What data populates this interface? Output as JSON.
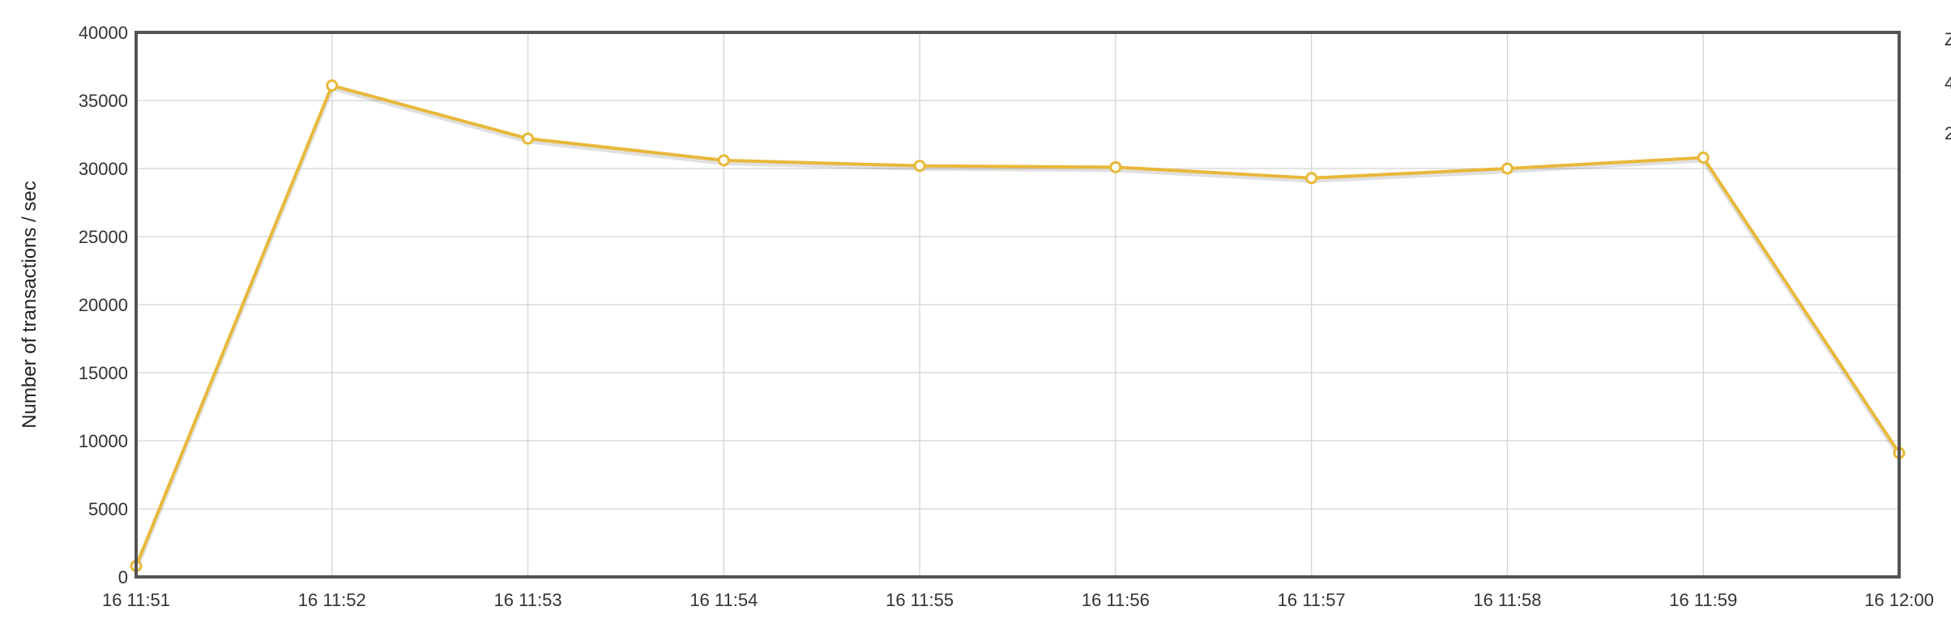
{
  "chart_data": {
    "type": "line",
    "title": "",
    "xlabel": "",
    "ylabel": "Number of transactions / sec",
    "x": [
      "16 11:51",
      "16 11:52",
      "16 11:53",
      "16 11:54",
      "16 11:55",
      "16 11:56",
      "16 11:57",
      "16 11:58",
      "16 11:59",
      "16 12:00"
    ],
    "series": [
      {
        "color": "#e8b83a",
        "values": [
          800,
          36100,
          32200,
          30600,
          30200,
          30100,
          29300,
          30000,
          30800,
          9100
        ]
      }
    ],
    "ylim": [
      0,
      40000
    ],
    "yticks": [
      "0",
      "5000",
      "10000",
      "15000",
      "20000",
      "25000",
      "30000",
      "35000",
      "40000"
    ],
    "grid": true,
    "legend": "right (clipped)",
    "legend_fragments": [
      "Z",
      "4",
      "2"
    ]
  }
}
